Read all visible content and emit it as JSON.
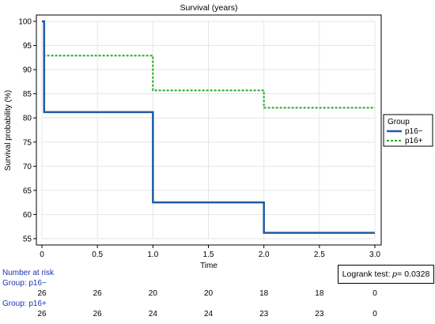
{
  "chart_data": {
    "type": "line",
    "title": "Survival (years)",
    "xlabel": "Time",
    "ylabel": "Survival probability (%)",
    "xlim": [
      0,
      3
    ],
    "ylim": [
      55,
      100
    ],
    "x_ticks": [
      "0",
      "0.5",
      "1.0",
      "1.5",
      "2.0",
      "2.5",
      "3.0"
    ],
    "y_ticks": [
      "55",
      "60",
      "65",
      "70",
      "75",
      "80",
      "85",
      "90",
      "95",
      "100"
    ],
    "grid": true,
    "step": true,
    "legend": {
      "title": "Group",
      "position": "right"
    },
    "series": [
      {
        "name": "p16−",
        "color": "#1f5aa6",
        "style": "solid",
        "points": [
          [
            0,
            100
          ],
          [
            0.02,
            81.2
          ],
          [
            1.0,
            62.5
          ],
          [
            2.0,
            56.2
          ],
          [
            3.0,
            56.2
          ]
        ]
      },
      {
        "name": "p16+",
        "color": "#22aa22",
        "style": "dashed",
        "points": [
          [
            0,
            100
          ],
          [
            0.02,
            92.9
          ],
          [
            1.0,
            85.7
          ],
          [
            2.0,
            82.1
          ],
          [
            3.0,
            82.1
          ]
        ]
      }
    ],
    "annotation": {
      "prefix": "Logrank test: ",
      "p_label": "p",
      "p_value": "= 0.0328"
    },
    "risk_table": {
      "title": "Number at risk",
      "groups": [
        {
          "label": "Group: p16−",
          "values": [
            "26",
            "26",
            "20",
            "20",
            "18",
            "18",
            "0"
          ]
        },
        {
          "label": "Group: p16+",
          "values": [
            "26",
            "26",
            "24",
            "24",
            "23",
            "23",
            "0"
          ]
        }
      ]
    }
  }
}
